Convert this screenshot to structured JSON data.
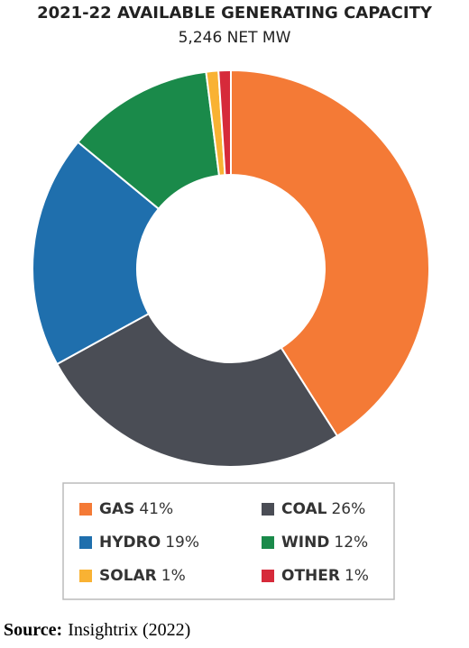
{
  "chart_data": {
    "type": "donut",
    "title": "2021-22 AVAILABLE GENERATING CAPACITY",
    "subtitle": "5,246 NET MW",
    "categories": [
      "GAS",
      "COAL",
      "HYDRO",
      "WIND",
      "SOLAR",
      "OTHER"
    ],
    "values": [
      41,
      26,
      19,
      12,
      1,
      1
    ],
    "value_labels": [
      "41%",
      "26%",
      "19%",
      "12%",
      "1%",
      "1%"
    ],
    "colors": [
      "#f47a36",
      "#4a4d55",
      "#1f6fad",
      "#1a8a4a",
      "#f9b233",
      "#d62a3a"
    ],
    "legend": "bottom"
  },
  "source_label": "Source:",
  "source": "Insightrix (2022)"
}
